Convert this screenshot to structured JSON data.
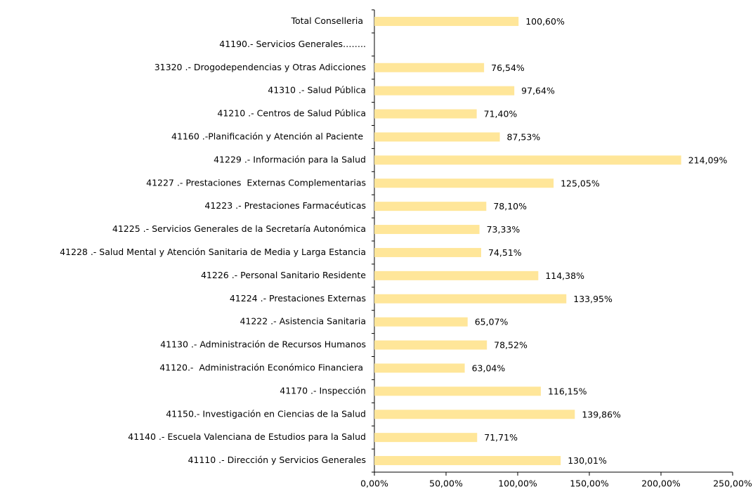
{
  "chart_data": {
    "type": "barh",
    "categories": [
      "Total Conselleria ",
      "41190.- Servicios Generales……..",
      "31320 .- Drogodependencias y Otras Adicciones",
      "41310 .- Salud Pública",
      "41210 .- Centros de Salud Pública",
      "41160 .-Planificación y Atención al Paciente ",
      "41229 .- Información para la Salud",
      "41227 .- Prestaciones  Externas Complementarias",
      "41223 .- Prestaciones Farmacéuticas",
      "41225 .- Servicios Generales de la Secretaría Autonómica",
      "41228 .- Salud Mental y Atención Sanitaria de Media y Larga Estancia",
      "41226 .- Personal Sanitario Residente",
      "41224 .- Prestaciones Externas",
      "41222 .- Asistencia Sanitaria",
      "41130 .- Administración de Recursos Humanos",
      "41120.-  Administración Económico Financiera ",
      "41170 .- Inspección",
      "41150.- Investigación en Ciencias de la Salud",
      "41140 .- Escuela Valenciana de Estudios para la Salud",
      "41110 .- Dirección y Servicios Generales"
    ],
    "values": [
      100.6,
      null,
      76.54,
      97.64,
      71.4,
      87.53,
      214.09,
      125.05,
      78.1,
      73.33,
      74.51,
      114.38,
      133.95,
      65.07,
      78.52,
      63.04,
      116.15,
      139.86,
      71.71,
      130.01
    ],
    "value_labels": [
      "100,60%",
      null,
      "76,54%",
      "97,64%",
      "71,40%",
      "87,53%",
      "214,09%",
      "125,05%",
      "78,10%",
      "73,33%",
      "74,51%",
      "114,38%",
      "133,95%",
      "65,07%",
      "78,52%",
      "63,04%",
      "116,15%",
      "139,86%",
      "71,71%",
      "130,01%"
    ],
    "color": "#ffe699",
    "xlim": [
      0,
      250
    ],
    "xticks": [
      {
        "value": 0,
        "label": "0,00%"
      },
      {
        "value": 50,
        "label": "50,00%"
      },
      {
        "value": 100,
        "label": "100,00%"
      },
      {
        "value": 150,
        "label": "150,00%"
      },
      {
        "value": 200,
        "label": "200,00%"
      },
      {
        "value": 250,
        "label": "250,00%"
      }
    ]
  }
}
